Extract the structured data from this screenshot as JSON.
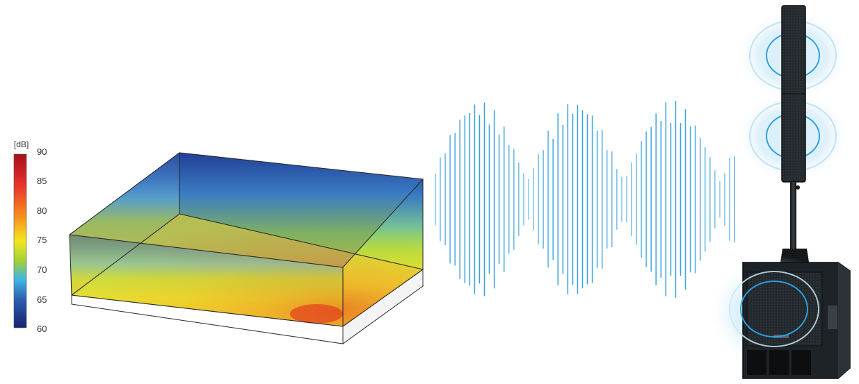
{
  "colorbar": {
    "unit": "[dB]",
    "ticks": [
      "90",
      "85",
      "80",
      "75",
      "70",
      "65",
      "60"
    ],
    "colors": [
      "#b5121b",
      "#e8332a",
      "#f58a1f",
      "#f5e61d",
      "#9ed03a",
      "#3fb7e6",
      "#2a5db0",
      "#16246e"
    ]
  },
  "soundfield_box": {
    "top_color": "#2746a3",
    "mid_color": "#d8e52a",
    "bottom_color": "#f3a12a",
    "hot_color": "#e5441f"
  },
  "waveform": {
    "color": "#3aa3df"
  },
  "speaker": {
    "color": "#1f2428",
    "ring_color": "#2b9fe0"
  }
}
